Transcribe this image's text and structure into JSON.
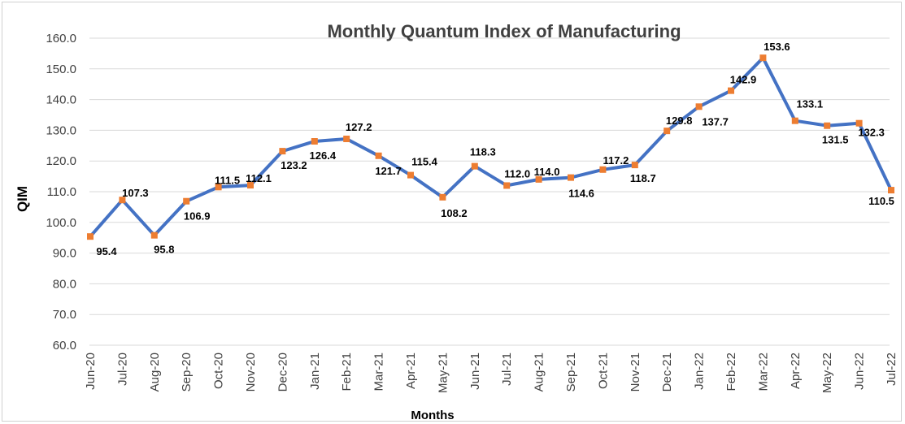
{
  "chart_data": {
    "type": "line",
    "title": "Monthly Quantum Index of Manufacturing",
    "xlabel": "Months",
    "ylabel": "QIM",
    "ylim": [
      60,
      160
    ],
    "ytick_step": 10,
    "grid": true,
    "legend": "none",
    "colors": {
      "line": "#4472c4",
      "marker": "#ed7d31",
      "grid": "#d9d9d9",
      "text": "#404040"
    },
    "categories": [
      "Jun-20",
      "Jul-20",
      "Aug-20",
      "Sep-20",
      "Oct-20",
      "Nov-20",
      "Dec-20",
      "Jan-21",
      "Feb-21",
      "Mar-21",
      "Apr-21",
      "May-21",
      "Jun-21",
      "Jul-21",
      "Aug-21",
      "Sep-21",
      "Oct-21",
      "Nov-21",
      "Dec-21",
      "Jan-22",
      "Feb-22",
      "Mar-22",
      "Apr-22",
      "May-22",
      "Jun-22",
      "Jul-22"
    ],
    "series": [
      {
        "values": [
          95.4,
          107.3,
          95.8,
          106.9,
          111.5,
          112.1,
          123.2,
          126.4,
          127.2,
          121.7,
          115.4,
          108.2,
          118.3,
          112.0,
          114.0,
          114.6,
          117.2,
          118.7,
          129.8,
          137.7,
          142.9,
          153.6,
          133.1,
          131.5,
          132.3,
          110.5
        ],
        "data_labels": [
          "95.4",
          "107.3",
          "95.8",
          "106.9",
          "111.5",
          "112.1",
          "123.2",
          "126.4",
          "127.2",
          "121.7",
          "115.4",
          "108.2",
          "118.3",
          "112.0",
          "114.0",
          "114.6",
          "117.2",
          "118.7",
          "129.8",
          "137.7",
          "142.9",
          "153.6",
          "133.1",
          "131.5",
          "132.3",
          "110.5"
        ]
      }
    ]
  }
}
